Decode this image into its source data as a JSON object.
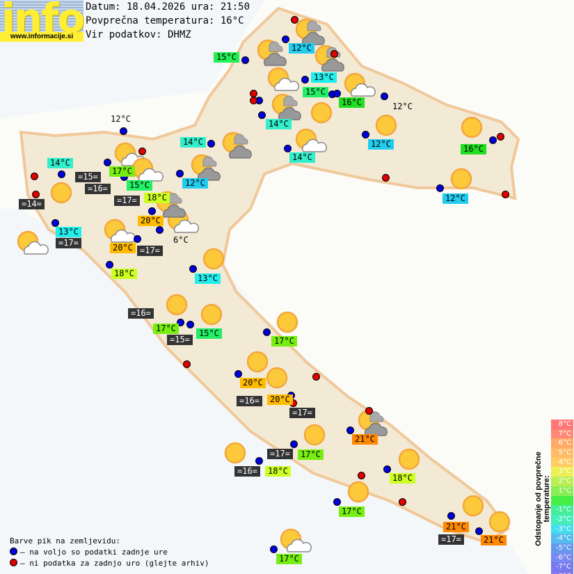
{
  "logo": {
    "text": "info",
    "url": "www.informacije.si"
  },
  "header": {
    "date_line": "Datum: 18.04.2026 ura: 21:50",
    "avg_line": "Povprečna temperatura: 16°C",
    "source_line": "Vir podatkov: DHMZ"
  },
  "temps": [
    {
      "t": "15°C",
      "c": "#22ee55"
    },
    {
      "t": "12°C",
      "c": "#22ccee"
    },
    {
      "t": "13°C",
      "c": "#22eeee"
    },
    {
      "t": "15°C",
      "c": "#22ee66"
    },
    {
      "t": "16°C",
      "c": "#22dd22"
    },
    {
      "t": "12°C",
      "c": ""
    },
    {
      "t": "14°C",
      "c": "#33eecc"
    },
    {
      "t": "14°C",
      "c": "#33eecc"
    },
    {
      "t": "12°C",
      "c": "#22ccee"
    },
    {
      "t": "16°C",
      "c": "#22dd22"
    },
    {
      "t": "12°C",
      "c": "#22ccee"
    },
    {
      "t": "12°C",
      "c": ""
    },
    {
      "t": "14°C",
      "c": "#33eecc"
    },
    {
      "t": "14°C",
      "c": "#33eecc"
    },
    {
      "t": "17°C",
      "c": "#77ee11"
    },
    {
      "t": "15°C",
      "c": "#22ee66"
    },
    {
      "t": "18°C",
      "c": "#ccff22"
    },
    {
      "t": "12°C",
      "c": "#22ccee"
    },
    {
      "t": "20°C",
      "c": "#ffbb00"
    },
    {
      "t": "13°C",
      "c": "#22eeee"
    },
    {
      "t": "6°C",
      "c": ""
    },
    {
      "t": "20°C",
      "c": "#ffbb00"
    },
    {
      "t": "18°C",
      "c": "#ccff22"
    },
    {
      "t": "13°C",
      "c": "#22eeee"
    },
    {
      "t": "17°C",
      "c": "#77ee11"
    },
    {
      "t": "15°C",
      "c": "#22ee66"
    },
    {
      "t": "17°C",
      "c": "#77ee11"
    },
    {
      "t": "20°C",
      "c": "#ffbb00"
    },
    {
      "t": "20°C",
      "c": "#ffbb00"
    },
    {
      "t": "21°C",
      "c": "#ff8800"
    },
    {
      "t": "17°C",
      "c": "#77ee11"
    },
    {
      "t": "18°C",
      "c": "#ccff22"
    },
    {
      "t": "18°C",
      "c": "#ccff22"
    },
    {
      "t": "17°C",
      "c": "#77ee11"
    },
    {
      "t": "21°C",
      "c": "#ff8800"
    },
    {
      "t": "21°C",
      "c": "#ff8800"
    },
    {
      "t": "17°C",
      "c": "#77ee11"
    }
  ],
  "sea_temps": [
    "=15=",
    "=16=",
    "=17=",
    "=14=",
    "=17=",
    "=17=",
    "=16=",
    "=15=",
    "=16=",
    "=17=",
    "=17=",
    "=16=",
    "=17="
  ],
  "weather_icons": {
    "sun_dark_cloud": 8,
    "sun_white_cloud": 9,
    "sun": 17
  },
  "colors": {
    "data_available": "#0000dd",
    "no_data": "#dd0000"
  },
  "legend": {
    "title": "Barve pik na zemljevidu:",
    "blue": "– na voljo so podatki zadnje ure",
    "red": "– ni podatka za zadnjo uro (glejte arhiv)"
  },
  "scale": {
    "title": "Odstopanje od povprečne temperature:",
    "steps": [
      {
        "t": "8°C",
        "c": "#ff7777"
      },
      {
        "t": "7°C",
        "c": "#ff8877"
      },
      {
        "t": "6°C",
        "c": "#ffaa66"
      },
      {
        "t": "5°C",
        "c": "#ffbb66"
      },
      {
        "t": "4°C",
        "c": "#ffcc66"
      },
      {
        "t": "3°C",
        "c": "#eeee55"
      },
      {
        "t": "2°C",
        "c": "#bbee55"
      },
      {
        "t": "1°C",
        "c": "#88ee55"
      },
      {
        "t": "",
        "c": "#44ee44"
      },
      {
        "t": "-1°C",
        "c": "#44ee99"
      },
      {
        "t": "-2°C",
        "c": "#44eebb"
      },
      {
        "t": "-3°C",
        "c": "#44ddee"
      },
      {
        "t": "-4°C",
        "c": "#55bbee"
      },
      {
        "t": "-5°C",
        "c": "#6699ee"
      },
      {
        "t": "-6°C",
        "c": "#7788ee"
      },
      {
        "t": "-7°C",
        "c": "#7777ee"
      },
      {
        "t": "-8°C",
        "c": "#8877ee"
      }
    ]
  }
}
